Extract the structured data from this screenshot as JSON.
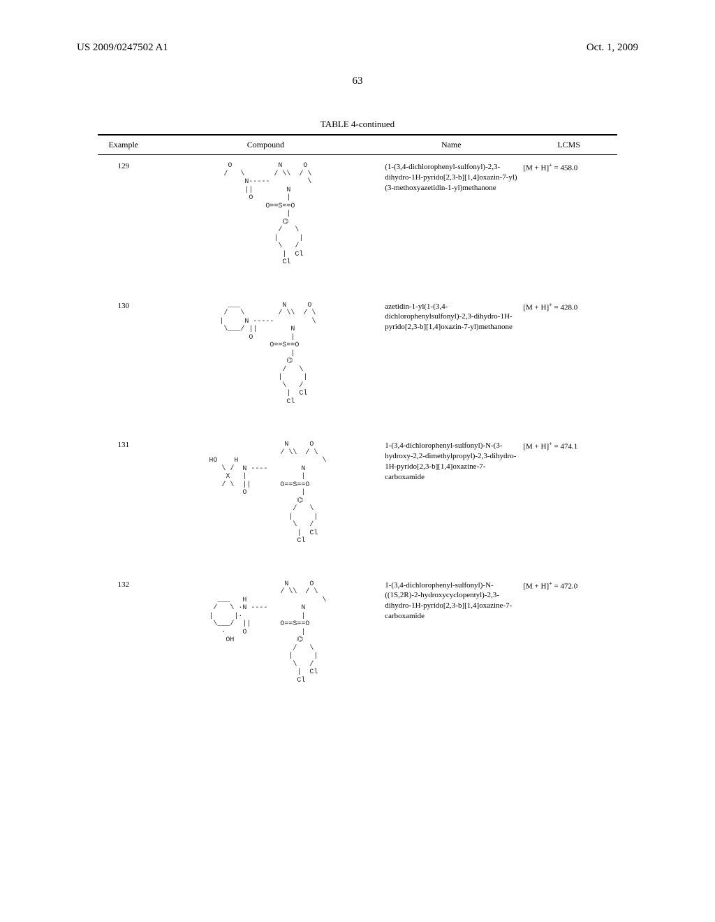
{
  "header": {
    "publication_number": "US 2009/0247502 A1",
    "date": "Oct. 1, 2009",
    "page_number": "63"
  },
  "table": {
    "title": "TABLE 4-continued",
    "columns": {
      "example": "Example",
      "compound": "Compound",
      "name": "Name",
      "lcms": "LCMS"
    },
    "rows": [
      {
        "example": "129",
        "structure_ascii": "  O           N     O\n /   \\       / \\\\  / \\\n      N-----         \\\n      ||        N\n       O        |\n           O==S==O\n                |\n               ⌬\n              /   \\\n             |     |\n              \\   /\n               |  Cl\n               Cl",
        "name": "(1-(3,4-dichlorophenyl-sulfonyl)-2,3-dihydro-1H-pyrido[2,3-b][1,4]oxazin-7-yl)(3-methoxyazetidin-1-yl)methanone",
        "lcms_html": "[M + H]<sup>+</sup> = 458.0"
      },
      {
        "example": "130",
        "structure_ascii": "   ___          N     O\n  /   \\        / \\\\  / \\\n |     N -----         \\\n  \\___/ ||        N\n        O         |\n             O==S==O\n                  |\n                 ⌬\n                /   \\\n               |     |\n                \\   /\n                 |  Cl\n                 Cl",
        "name": "azetidin-1-yl(1-(3,4-dichlorophenylsulfonyl)-2,3-dihydro-1H-pyrido[2,3-b][1,4]oxazin-7-yl)methanone",
        "lcms_html": "[M + H]<sup>+</sup> = 428.0"
      },
      {
        "example": "131",
        "structure_ascii": "                   N     O\n                  / \\\\  / \\\n HO    H                    \\\n    \\ /  N ----        N\n     X   |             |\n    / \\  ||       O==S==O\n         O             |\n                      ⌬\n                     /   \\\n                    |     |\n                     \\   /\n                      |  Cl\n                      Cl",
        "name": "1-(3,4-dichlorophenyl-sulfonyl)-N-(3-hydroxy-2,2-dimethylpropyl)-2,3-dihydro-1H-pyrido[2,3-b][1,4]oxazine-7-carboxamide",
        "lcms_html": "[M + H]<sup>+</sup> = 474.1"
      },
      {
        "example": "132",
        "structure_ascii": "                   N     O\n                  / \\\\  / \\\n   ___   H                  \\\n  /   \\ ·N ----        N\n |     |·              |\n  \\___/  ||       O==S==O\n    ·    O             |\n     OH               ⌬\n                     /   \\\n                    |     |\n                     \\   /\n                      |  Cl\n                      Cl",
        "name": "1-(3,4-dichlorophenyl-sulfonyl)-N-((1S,2R)-2-hydroxycyclopentyl)-2,3-dihydro-1H-pyrido[2,3-b][1,4]oxazine-7-carboxamide",
        "lcms_html": "[M + H]<sup>+</sup> = 472.0"
      }
    ]
  }
}
